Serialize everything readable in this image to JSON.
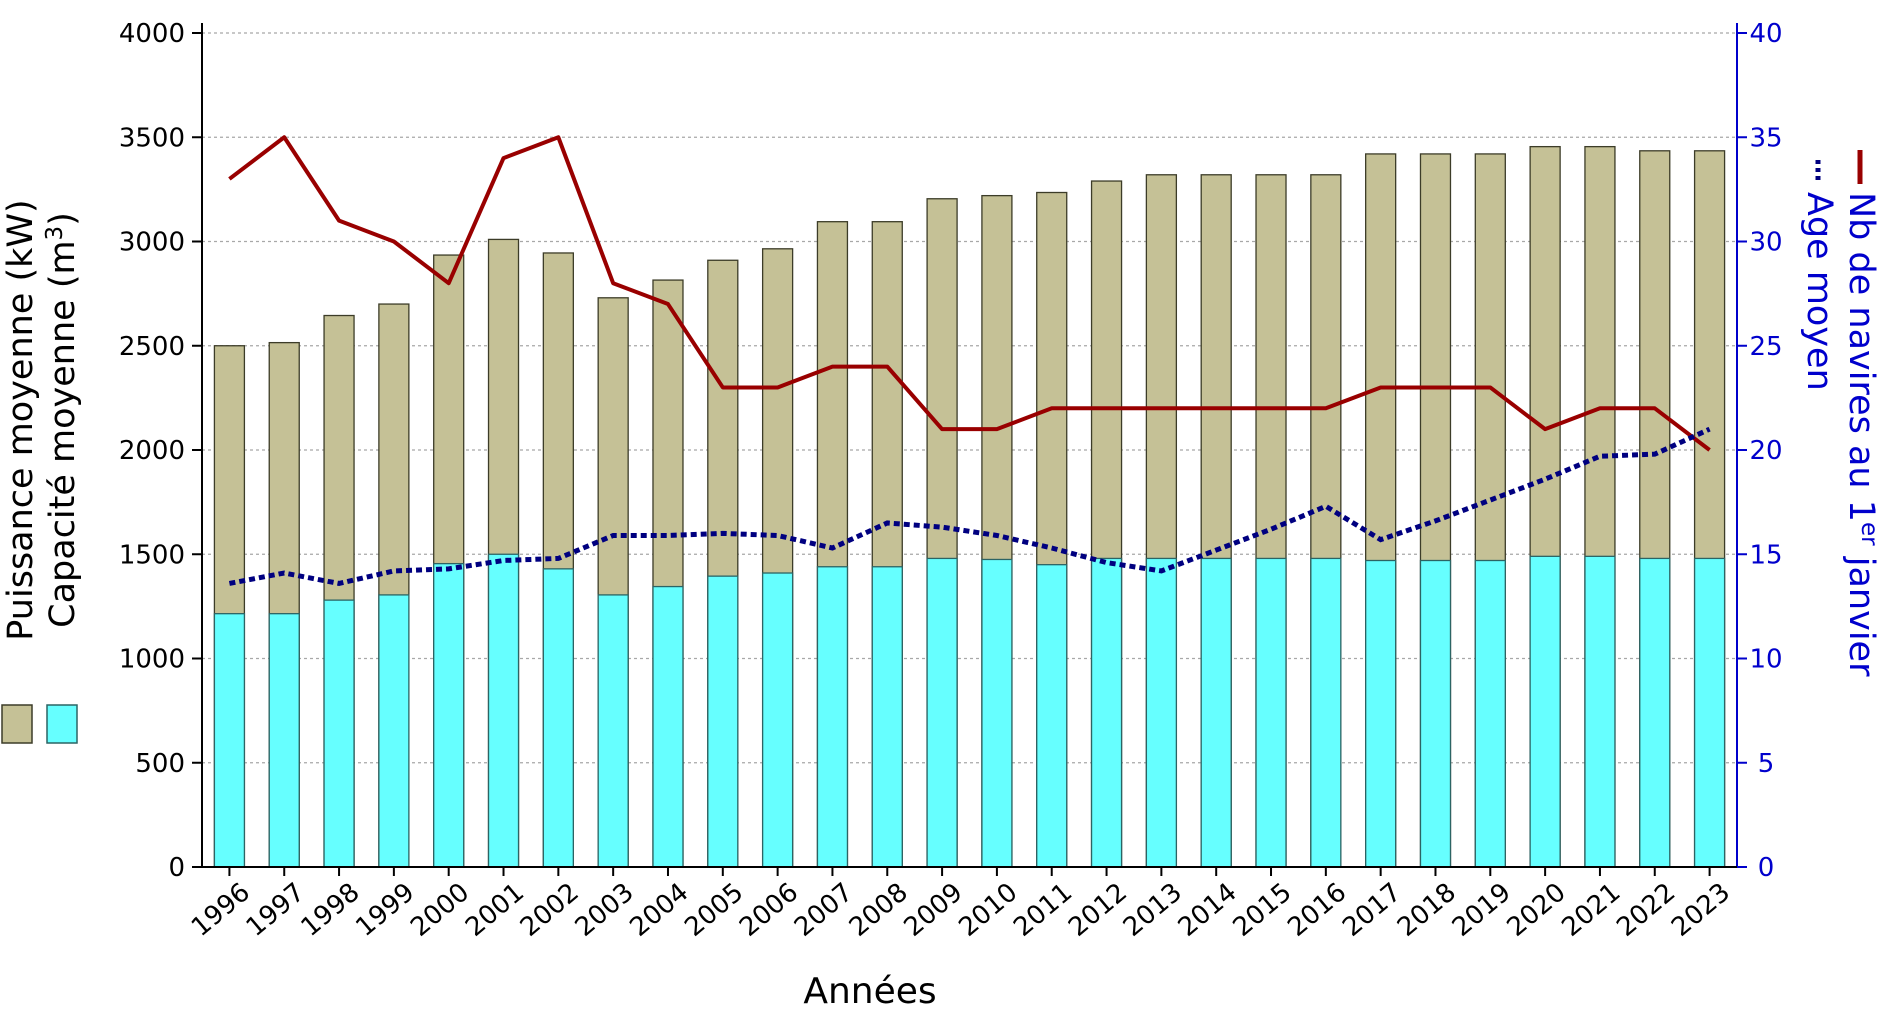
{
  "chart_data": {
    "type": "bar",
    "xlabel": "Années",
    "categories": [
      "1996",
      "1997",
      "1998",
      "1999",
      "2000",
      "2001",
      "2002",
      "2003",
      "2004",
      "2005",
      "2006",
      "2007",
      "2008",
      "2009",
      "2010",
      "2011",
      "2012",
      "2013",
      "2014",
      "2015",
      "2016",
      "2017",
      "2018",
      "2019",
      "2020",
      "2021",
      "2022",
      "2023"
    ],
    "left_axis": {
      "label_line1": "Puissance moyenne (kW)",
      "label_line2_prefix": "Capacité moyenne (m",
      "label_line2_sup": "3",
      "label_line2_suffix": ")",
      "ylim": [
        0,
        4000
      ],
      "ticks": [
        0,
        500,
        1000,
        1500,
        2000,
        2500,
        3000,
        3500,
        4000
      ]
    },
    "right_axis": {
      "label_line1_prefix": "Nb de navires au 1",
      "label_line1_sup": "er",
      "label_line1_suffix": " janvier",
      "label_line2": "Age moyen",
      "ylim": [
        0,
        40
      ],
      "ticks": [
        0,
        5,
        10,
        15,
        20,
        25,
        30,
        35,
        40
      ],
      "color": "#0000cc"
    },
    "series": [
      {
        "name": "Puissance moyenne (kW)",
        "kind": "bar",
        "axis": "left",
        "color": "#c5c196",
        "values": [
          2500,
          2515,
          2645,
          2700,
          2935,
          3010,
          2945,
          2730,
          2815,
          2910,
          2965,
          3095,
          3095,
          3205,
          3220,
          3235,
          3290,
          3320,
          3320,
          3320,
          3320,
          3420,
          3420,
          3420,
          3455,
          3455,
          3435,
          3435
        ]
      },
      {
        "name": "Capacité moyenne (m3)",
        "kind": "bar",
        "axis": "left",
        "color": "#66ffff",
        "values": [
          1215,
          1215,
          1280,
          1305,
          1455,
          1500,
          1430,
          1305,
          1345,
          1395,
          1410,
          1440,
          1440,
          1480,
          1475,
          1450,
          1480,
          1480,
          1480,
          1480,
          1480,
          1470,
          1470,
          1470,
          1490,
          1490,
          1480,
          1480
        ]
      },
      {
        "name": "Nb de navires au 1er janvier",
        "kind": "line",
        "axis": "right",
        "color": "#990000",
        "values": [
          33,
          35,
          31,
          30,
          28,
          34,
          35,
          28,
          27,
          23,
          23,
          24,
          24,
          21,
          21,
          22,
          22,
          22,
          22,
          22,
          22,
          23,
          23,
          23,
          21,
          22,
          22,
          20
        ]
      },
      {
        "name": "Age moyen",
        "kind": "dotted-line",
        "axis": "right",
        "color": "#000080",
        "values": [
          13.6,
          14.1,
          13.6,
          14.2,
          14.3,
          14.7,
          14.8,
          15.9,
          15.9,
          16,
          15.9,
          15.3,
          16.5,
          16.3,
          15.9,
          15.3,
          14.6,
          14.2,
          15.2,
          16.2,
          17.3,
          15.7,
          16.6,
          17.6,
          18.6,
          19.7,
          19.8,
          21
        ]
      }
    ],
    "grid": "horizontal dotted"
  }
}
